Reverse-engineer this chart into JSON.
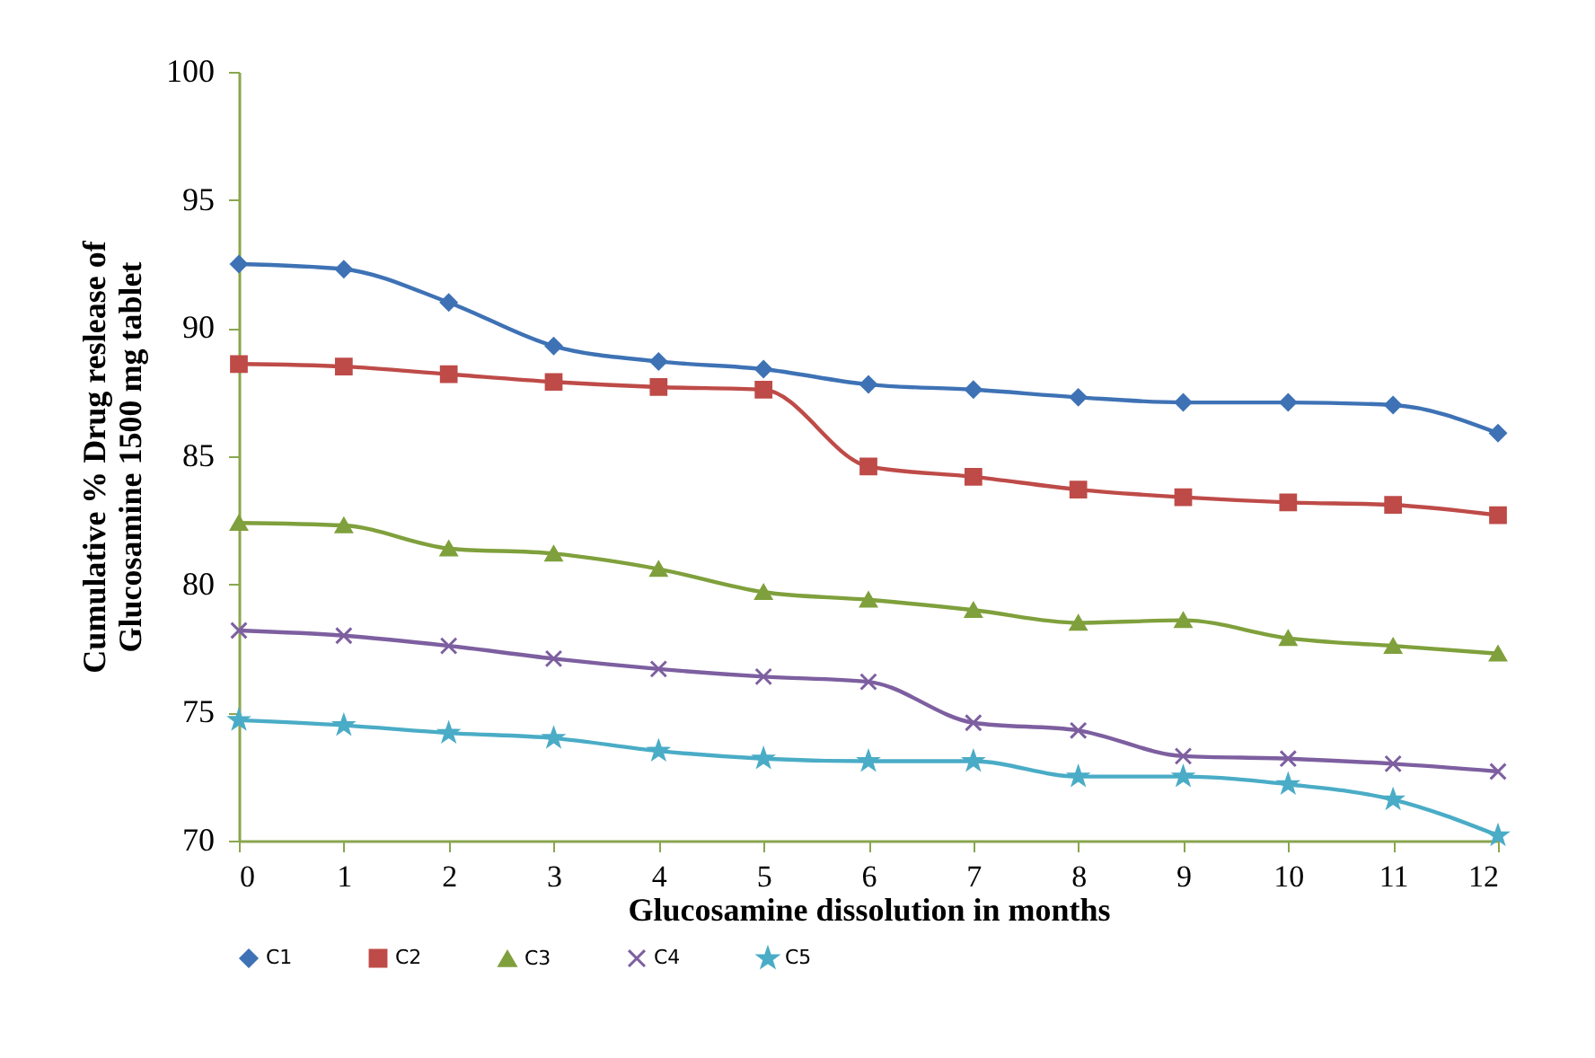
{
  "chart_data": {
    "type": "line",
    "xlabel": "Glucosamine dissolution in months",
    "ylabel": "Cumulative % Drug reslease of\nGlucosamine 1500 mg tablet",
    "x": [
      0,
      1,
      2,
      3,
      4,
      5,
      6,
      7,
      8,
      9,
      10,
      11,
      12
    ],
    "series": [
      {
        "name": "C1",
        "color": "#3e72b5",
        "marker": "diamond",
        "values": [
          92.5,
          92.3,
          91.0,
          89.3,
          88.7,
          88.4,
          87.8,
          87.6,
          87.3,
          87.1,
          87.1,
          87.0,
          85.9
        ]
      },
      {
        "name": "C2",
        "color": "#be4b48",
        "marker": "square",
        "values": [
          88.6,
          88.5,
          88.2,
          87.9,
          87.7,
          87.6,
          84.6,
          84.2,
          83.7,
          83.4,
          83.2,
          83.1,
          82.7
        ]
      },
      {
        "name": "C3",
        "color": "#7fa03c",
        "marker": "triangle",
        "values": [
          82.4,
          82.3,
          81.4,
          81.2,
          80.6,
          79.7,
          79.4,
          79.0,
          78.5,
          78.6,
          77.9,
          77.6,
          77.3
        ]
      },
      {
        "name": "C4",
        "color": "#7d5fa0",
        "marker": "cross",
        "values": [
          78.2,
          78.0,
          77.6,
          77.1,
          76.7,
          76.4,
          76.2,
          74.6,
          74.3,
          73.3,
          73.2,
          73.0,
          72.7
        ]
      },
      {
        "name": "C5",
        "color": "#4aacc6",
        "marker": "star",
        "values": [
          74.7,
          74.5,
          74.2,
          74.0,
          73.5,
          73.2,
          73.1,
          73.1,
          72.5,
          72.5,
          72.2,
          71.6,
          70.2
        ]
      }
    ],
    "xlim": [
      0,
      12
    ],
    "xticks": [
      0,
      1,
      2,
      3,
      4,
      5,
      6,
      7,
      8,
      9,
      10,
      11,
      12
    ],
    "ylim": [
      70,
      100
    ],
    "yticks": [
      70,
      75,
      80,
      85,
      90,
      95,
      100
    ],
    "grid": false,
    "legend": "bottom",
    "line_style": "solid"
  }
}
